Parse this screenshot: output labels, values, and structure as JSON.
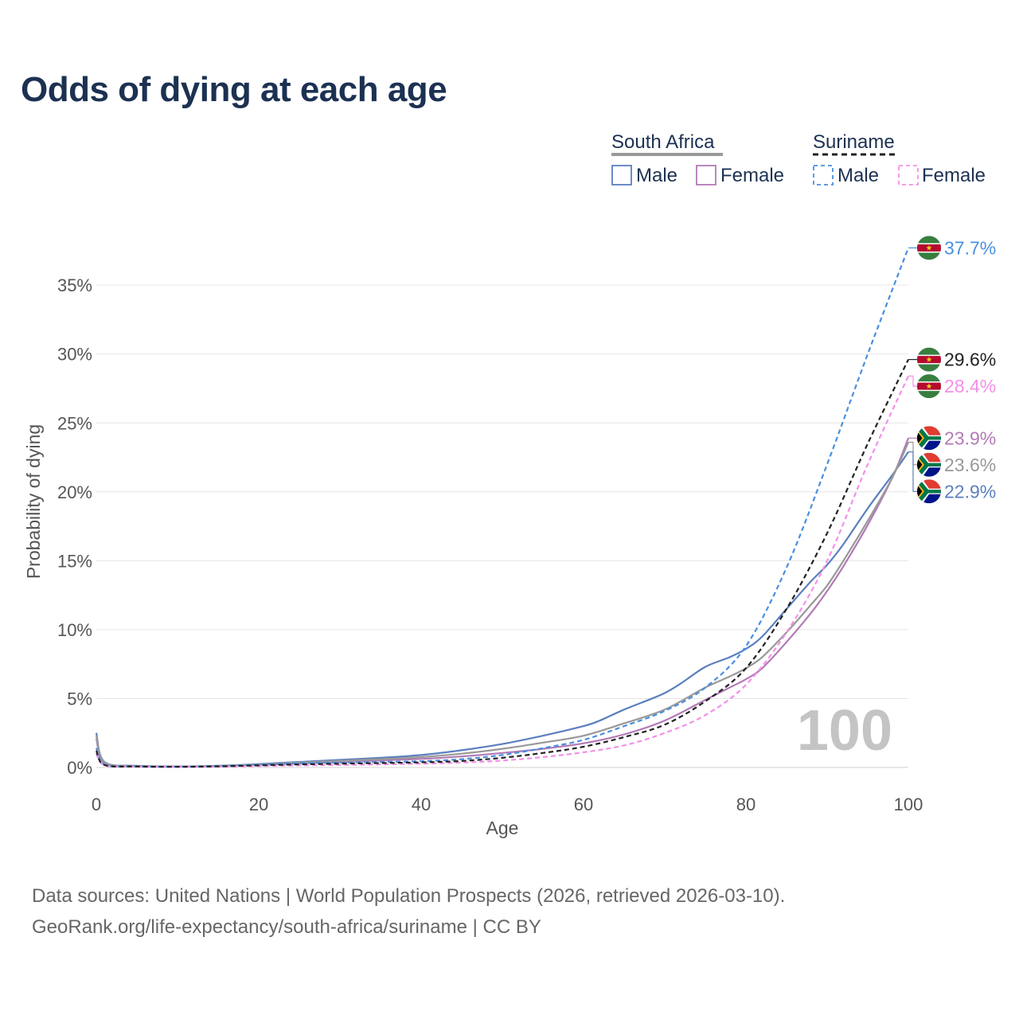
{
  "title": "Odds of dying at each age",
  "footer": {
    "line1": "Data sources: United Nations | World Population Prospects (2026, retrieved 2026-03-10).",
    "line2": "GeoRank.org/life-expectancy/south-africa/suriname | CC BY"
  },
  "legend": {
    "groups": [
      {
        "name": "South Africa",
        "line_style": "solid",
        "underline_color": "#999999",
        "items": [
          {
            "label": "Male",
            "color": "#5b7fbf"
          },
          {
            "label": "Female",
            "color": "#b27ab6"
          }
        ]
      },
      {
        "name": "Suriname",
        "line_style": "dashed",
        "underline_color": "#222222",
        "items": [
          {
            "label": "Male",
            "color": "#4a8fe0"
          },
          {
            "label": "Female",
            "color": "#f48fe8"
          }
        ]
      }
    ]
  },
  "watermark": "100",
  "chart_data": {
    "type": "line",
    "title": "Odds of dying at each age",
    "xlabel": "Age",
    "ylabel": "Probability of dying",
    "xlim": [
      0,
      100
    ],
    "ylim": [
      0,
      40
    ],
    "x_ticks": [
      0,
      20,
      40,
      60,
      80,
      100
    ],
    "y_ticks": [
      0,
      5,
      10,
      15,
      20,
      25,
      30,
      35
    ],
    "y_tick_labels": [
      "0%",
      "5%",
      "10%",
      "15%",
      "20%",
      "25%",
      "30%",
      "35%"
    ],
    "grid": true,
    "series": [
      {
        "name": "South Africa Male",
        "country": "South Africa",
        "sex": "Male",
        "style": "solid",
        "color": "#5b7fbf",
        "end_label": "22.9%",
        "x": [
          0,
          1,
          5,
          10,
          15,
          20,
          25,
          30,
          35,
          40,
          45,
          50,
          55,
          60,
          62,
          65,
          68,
          70,
          72,
          75,
          78,
          80,
          82,
          85,
          88,
          90,
          92,
          95,
          98,
          100
        ],
        "y": [
          2.5,
          0.4,
          0.12,
          0.08,
          0.12,
          0.25,
          0.4,
          0.55,
          0.7,
          0.9,
          1.25,
          1.7,
          2.3,
          3.0,
          3.4,
          4.2,
          4.9,
          5.4,
          6.1,
          7.3,
          8.0,
          8.6,
          9.5,
          11.5,
          13.5,
          14.7,
          16.2,
          18.8,
          21.2,
          22.9
        ]
      },
      {
        "name": "South Africa Female",
        "country": "South Africa",
        "sex": "Female",
        "style": "solid",
        "color": "#b27ab6",
        "end_label": "23.9%",
        "x": [
          0,
          1,
          5,
          10,
          15,
          20,
          25,
          30,
          35,
          40,
          45,
          50,
          55,
          60,
          65,
          70,
          75,
          78,
          80,
          82,
          85,
          88,
          90,
          92,
          95,
          98,
          100
        ],
        "y": [
          2.1,
          0.3,
          0.1,
          0.07,
          0.1,
          0.2,
          0.3,
          0.4,
          0.5,
          0.62,
          0.8,
          1.05,
          1.35,
          1.75,
          2.4,
          3.4,
          4.9,
          5.8,
          6.4,
          7.2,
          9.1,
          11.2,
          12.8,
          14.6,
          17.6,
          21.0,
          23.9
        ]
      },
      {
        "name": "South Africa (total)",
        "country": "South Africa",
        "sex": "Total",
        "style": "solid",
        "color": "#999999",
        "end_label": "23.6%",
        "x": [
          0,
          1,
          5,
          10,
          15,
          20,
          25,
          30,
          35,
          40,
          45,
          50,
          55,
          60,
          65,
          70,
          75,
          78,
          80,
          82,
          85,
          88,
          90,
          92,
          95,
          98,
          100
        ],
        "y": [
          2.3,
          0.35,
          0.11,
          0.075,
          0.11,
          0.22,
          0.35,
          0.48,
          0.6,
          0.75,
          1.0,
          1.35,
          1.8,
          2.3,
          3.2,
          4.2,
          5.8,
          6.6,
          7.2,
          8.0,
          9.8,
          11.8,
          13.2,
          15.0,
          17.9,
          21.0,
          23.6
        ]
      },
      {
        "name": "Suriname Male",
        "country": "Suriname",
        "sex": "Male",
        "style": "dashed",
        "color": "#4a8fe0",
        "end_label": "37.7%",
        "x": [
          0,
          1,
          5,
          10,
          15,
          20,
          25,
          30,
          35,
          40,
          45,
          50,
          55,
          60,
          65,
          70,
          75,
          80,
          85,
          90,
          95,
          100
        ],
        "y": [
          1.4,
          0.2,
          0.08,
          0.05,
          0.1,
          0.2,
          0.3,
          0.35,
          0.4,
          0.45,
          0.6,
          0.9,
          1.4,
          2.0,
          3.0,
          4.1,
          5.8,
          8.8,
          14.5,
          22.0,
          30.0,
          37.7
        ]
      },
      {
        "name": "Suriname Female",
        "country": "Suriname",
        "sex": "Female",
        "style": "dashed",
        "color": "#f48fe8",
        "end_label": "28.4%",
        "x": [
          0,
          1,
          5,
          10,
          15,
          20,
          25,
          30,
          35,
          40,
          45,
          50,
          55,
          60,
          65,
          70,
          75,
          80,
          85,
          90,
          95,
          100
        ],
        "y": [
          1.0,
          0.15,
          0.06,
          0.04,
          0.06,
          0.1,
          0.15,
          0.18,
          0.22,
          0.27,
          0.35,
          0.5,
          0.75,
          1.1,
          1.6,
          2.5,
          3.8,
          6.0,
          9.8,
          15.0,
          22.0,
          28.4
        ]
      },
      {
        "name": "Suriname (total)",
        "country": "Suriname",
        "sex": "Total",
        "style": "dashed",
        "color": "#222222",
        "end_label": "29.6%",
        "x": [
          0,
          1,
          5,
          10,
          15,
          20,
          25,
          30,
          35,
          40,
          45,
          50,
          55,
          60,
          65,
          70,
          75,
          80,
          85,
          90,
          95,
          100
        ],
        "y": [
          1.2,
          0.18,
          0.07,
          0.045,
          0.08,
          0.15,
          0.22,
          0.27,
          0.32,
          0.37,
          0.47,
          0.7,
          1.05,
          1.5,
          2.2,
          3.1,
          4.8,
          7.2,
          11.5,
          17.0,
          23.5,
          29.6
        ]
      }
    ]
  }
}
